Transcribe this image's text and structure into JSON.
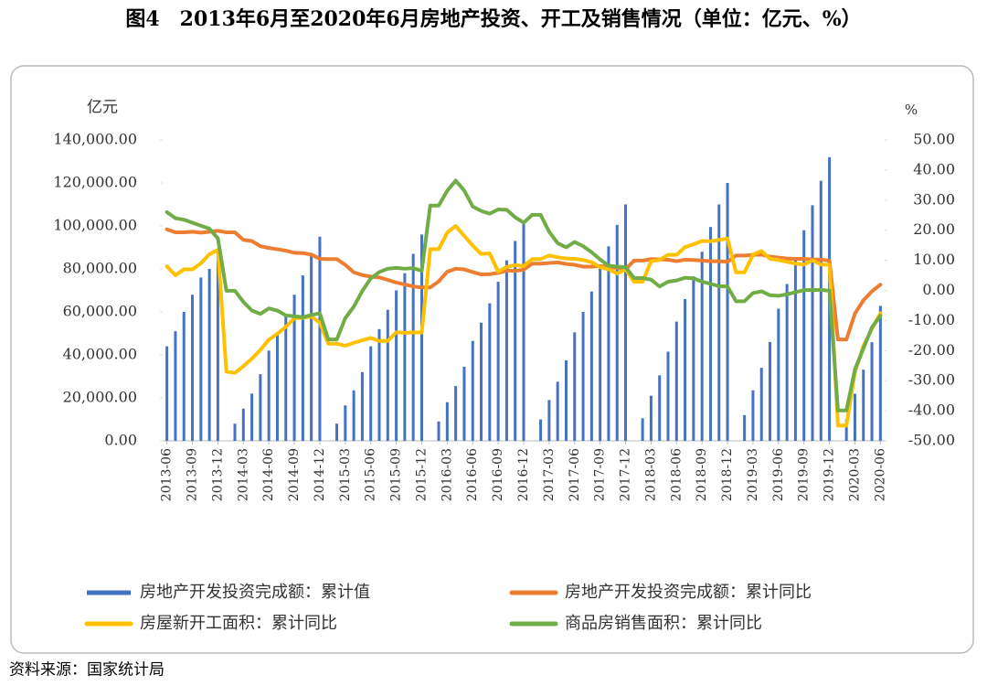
{
  "chart_data": {
    "type": "bar",
    "title": "图4　2013年6月至2020年6月房地产投资、开工及销售情况（单位：亿元、%）",
    "y_label": "亿元",
    "y2_label": "%",
    "source": "资料来源：国家统计局",
    "categories": [
      "2013-06",
      null,
      null,
      "2013-09",
      null,
      null,
      "2013-12",
      null,
      null,
      "2014-03",
      null,
      null,
      "2014-06",
      null,
      null,
      "2014-09",
      null,
      null,
      "2014-12",
      null,
      null,
      "2015-03",
      null,
      null,
      "2015-06",
      null,
      null,
      "2015-09",
      null,
      null,
      "2015-12",
      null,
      null,
      "2016-03",
      null,
      null,
      "2016-06",
      null,
      null,
      "2016-09",
      null,
      null,
      "2016-12",
      null,
      null,
      "2017-03",
      null,
      null,
      "2017-06",
      null,
      null,
      "2017-09",
      null,
      null,
      "2017-12",
      null,
      null,
      "2018-03",
      null,
      null,
      "2018-06",
      null,
      null,
      "2018-09",
      null,
      null,
      "2018-12",
      null,
      null,
      "2019-03",
      null,
      null,
      "2019-06",
      null,
      null,
      "2019-09",
      null,
      null,
      "2019-12",
      null,
      null,
      "2020-03",
      null,
      null,
      "2020-06"
    ],
    "series": [
      {
        "name": "房地产开发投资完成额：累计值",
        "type": "bar",
        "color": "#4472c4",
        "values": [
          44000,
          51000,
          60000,
          68000,
          76000,
          80000,
          86000,
          null,
          8000,
          15000,
          22000,
          31000,
          42000,
          50000,
          58000,
          68000,
          77000,
          86000,
          95000,
          null,
          8000,
          16500,
          23500,
          32000,
          44000,
          52000,
          61000,
          70000,
          78000,
          87000,
          96000,
          null,
          9000,
          18000,
          25500,
          34500,
          46500,
          55000,
          64000,
          74000,
          84000,
          93000,
          102500,
          null,
          10000,
          19000,
          27500,
          37500,
          50500,
          60000,
          69500,
          80500,
          90500,
          100500,
          110000,
          null,
          10500,
          21000,
          30500,
          41500,
          55500,
          66000,
          76500,
          88000,
          99500,
          110000,
          120000,
          null,
          12000,
          23500,
          34000,
          46000,
          61500,
          73000,
          84500,
          98000,
          109600,
          121000,
          132000,
          null,
          10000,
          21900,
          33100,
          45900,
          62800
        ]
      },
      {
        "name": "房地产开发投资完成额：累计同比",
        "type": "line",
        "axis": "y2",
        "color": "#ed7d31",
        "values": [
          20.3,
          19.3,
          19.3,
          19.5,
          19.2,
          19.5,
          19.8,
          19.3,
          19.3,
          16.8,
          16.4,
          14.7,
          14.1,
          13.7,
          13.2,
          12.5,
          12.4,
          11.9,
          10.5,
          10.4,
          10.4,
          8.5,
          6.0,
          5.1,
          4.6,
          4.3,
          3.5,
          2.6,
          2.0,
          1.3,
          1.0,
          1.0,
          3.0,
          6.2,
          7.2,
          7.0,
          6.1,
          5.3,
          5.4,
          5.8,
          6.6,
          6.5,
          6.9,
          8.9,
          8.9,
          9.1,
          9.3,
          8.8,
          8.5,
          7.9,
          7.9,
          8.1,
          7.8,
          7.5,
          7.0,
          9.9,
          9.9,
          10.4,
          10.3,
          10.2,
          9.7,
          10.2,
          10.1,
          9.9,
          9.7,
          9.7,
          9.5,
          11.6,
          11.6,
          11.8,
          11.9,
          11.2,
          10.9,
          10.6,
          10.5,
          10.5,
          10.3,
          10.2,
          9.9,
          -16.3,
          -16.3,
          -7.7,
          -3.3,
          -0.3,
          1.9
        ]
      },
      {
        "name": "房屋新开工面积：累计同比",
        "type": "line",
        "axis": "y2",
        "color": "#ffc000",
        "values": [
          8.0,
          5.0,
          7.0,
          7.0,
          9.0,
          12.0,
          13.5,
          -27.0,
          -27.4,
          -25.2,
          -22.7,
          -19.8,
          -16.4,
          -14.4,
          -12.1,
          -9.3,
          -9.1,
          -8.7,
          -10.7,
          -17.7,
          -17.7,
          -18.4,
          -17.4,
          -16.6,
          -15.8,
          -16.8,
          -16.8,
          -13.9,
          -14.1,
          -14.0,
          -14.0,
          13.7,
          13.7,
          19.2,
          21.4,
          18.1,
          14.9,
          12.1,
          12.3,
          6.2,
          7.8,
          8.4,
          8.1,
          10.4,
          10.4,
          11.6,
          11.0,
          10.6,
          10.5,
          10.1,
          9.4,
          7.7,
          7.0,
          5.6,
          7.0,
          2.9,
          2.9,
          9.7,
          10.1,
          11.8,
          11.8,
          14.4,
          15.3,
          16.4,
          16.3,
          16.8,
          17.2,
          6.0,
          6.0,
          11.9,
          13.1,
          10.5,
          10.1,
          9.5,
          8.9,
          8.6,
          10.0,
          8.6,
          8.5,
          -44.9,
          -44.9,
          -27.2,
          -18.4,
          -12.8,
          -7.6
        ]
      },
      {
        "name": "商品房销售面积：累计同比",
        "type": "line",
        "axis": "y2",
        "color": "#70ad47",
        "values": [
          26.0,
          24.0,
          23.5,
          22.5,
          21.5,
          20.5,
          17.3,
          -0.1,
          -0.1,
          -3.8,
          -6.7,
          -7.8,
          -6.0,
          -6.7,
          -8.3,
          -8.6,
          -8.9,
          -8.2,
          -7.6,
          -16.3,
          -16.3,
          -9.2,
          -5.4,
          -0.2,
          4.0,
          6.1,
          7.2,
          7.5,
          7.2,
          7.4,
          6.5,
          28.2,
          28.2,
          33.1,
          36.5,
          33.2,
          27.9,
          26.4,
          25.5,
          26.9,
          26.8,
          24.3,
          22.5,
          25.1,
          25.1,
          19.5,
          15.7,
          14.3,
          16.1,
          14.7,
          12.7,
          10.3,
          8.2,
          7.9,
          7.7,
          4.1,
          4.1,
          3.6,
          1.3,
          2.9,
          3.3,
          4.2,
          4.0,
          2.9,
          2.2,
          1.4,
          1.3,
          -3.6,
          -3.6,
          -0.9,
          -0.3,
          -1.6,
          -1.8,
          -1.3,
          -0.6,
          0.1,
          0.1,
          0.2,
          -0.1,
          -39.9,
          -39.9,
          -26.3,
          -19.3,
          -12.3,
          -8.4
        ]
      }
    ],
    "ylim": [
      0,
      140000
    ],
    "yticks": [
      {
        "value": 0,
        "label": "0.00"
      },
      {
        "value": 20000,
        "label": "20,000.00"
      },
      {
        "value": 40000,
        "label": "40,000.00"
      },
      {
        "value": 60000,
        "label": "60,000.00"
      },
      {
        "value": 80000,
        "label": "80,000.00"
      },
      {
        "value": 100000,
        "label": "100,000.00"
      },
      {
        "value": 120000,
        "label": "120,000.00"
      },
      {
        "value": 140000,
        "label": "140,000.00"
      }
    ],
    "y2lim": [
      -50,
      50
    ],
    "y2ticks": [
      {
        "value": -50,
        "label": "-50.00"
      },
      {
        "value": -40,
        "label": "-40.00"
      },
      {
        "value": -30,
        "label": "-30.00"
      },
      {
        "value": -20,
        "label": "-20.00"
      },
      {
        "value": -10,
        "label": "-10.00"
      },
      {
        "value": 0,
        "label": "0.00"
      },
      {
        "value": 10,
        "label": "10.00"
      },
      {
        "value": 20,
        "label": "20.00"
      },
      {
        "value": 30,
        "label": "30.00"
      },
      {
        "value": 40,
        "label": "40.00"
      },
      {
        "value": 50,
        "label": "50.00"
      }
    ],
    "grid": false
  }
}
